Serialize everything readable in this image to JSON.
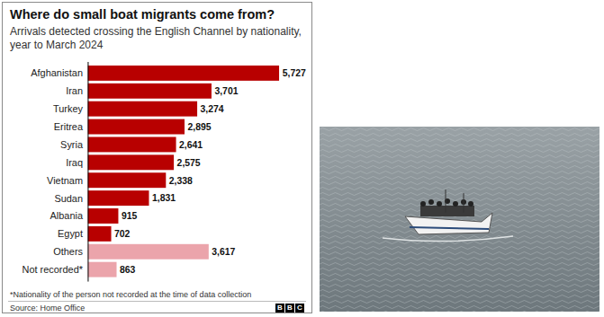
{
  "chart_data": {
    "type": "bar",
    "orientation": "horizontal",
    "title": "Where do small boat migrants come from?",
    "subtitle": "Arrivals detected crossing the English Channel by nationality, year to March 2024",
    "categories": [
      "Afghanistan",
      "Iran",
      "Turkey",
      "Eritrea",
      "Syria",
      "Iraq",
      "Vietnam",
      "Sudan",
      "Albania",
      "Egypt",
      "Others",
      "Not recorded*"
    ],
    "values": [
      5727,
      3701,
      3274,
      2895,
      2641,
      2575,
      2338,
      1831,
      915,
      702,
      3617,
      863
    ],
    "value_labels": [
      "5,727",
      "3,701",
      "3,274",
      "2,895",
      "2,641",
      "2,575",
      "2,338",
      "1,831",
      "915",
      "702",
      "3,617",
      "863"
    ],
    "colors": [
      "#b80000",
      "#b80000",
      "#b80000",
      "#b80000",
      "#b80000",
      "#b80000",
      "#b80000",
      "#b80000",
      "#b80000",
      "#b80000",
      "#eba4ab",
      "#eba4ab"
    ],
    "xlim": [
      0,
      5727
    ],
    "data_labels": true,
    "tick_labels": "y",
    "footnote": "*Nationality of the person not recorded at the time of data collection",
    "source": "Source: Home Office",
    "logo": "BBC"
  }
}
